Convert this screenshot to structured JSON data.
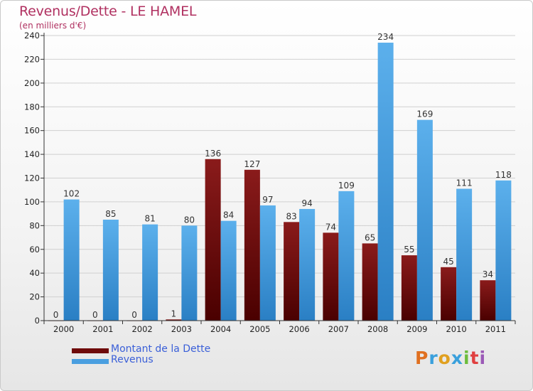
{
  "header": {
    "title": "Revenus/Dette - LE HAMEL",
    "subtitle": "(en milliers d'€)"
  },
  "legend": {
    "items": [
      {
        "label": "Montant de la Dette",
        "color": "#6e0a0a"
      },
      {
        "label": "Revenus",
        "color": "#4a9fe0"
      }
    ]
  },
  "logo": {
    "letters": [
      "P",
      "r",
      "o",
      "x",
      "i",
      "t",
      "i"
    ],
    "colors": [
      "#e07020",
      "#3aa0dc",
      "#e0a020",
      "#3aa0dc",
      "#6cbc3c",
      "#e04040",
      "#9b59b6"
    ]
  },
  "chart_data": {
    "type": "bar",
    "categories": [
      "2000",
      "2001",
      "2002",
      "2003",
      "2004",
      "2005",
      "2006",
      "2007",
      "2008",
      "2009",
      "2010",
      "2011"
    ],
    "series": [
      {
        "name": "Montant de la Dette",
        "values": [
          0,
          0,
          0,
          1,
          136,
          127,
          83,
          74,
          65,
          55,
          45,
          34
        ],
        "color": "#6e0a0a"
      },
      {
        "name": "Revenus",
        "values": [
          102,
          85,
          81,
          80,
          84,
          97,
          94,
          109,
          234,
          169,
          111,
          118
        ],
        "color": "#4a9fe0"
      }
    ],
    "ylim": [
      0,
      240
    ],
    "yticks": [
      0,
      20,
      40,
      60,
      80,
      100,
      120,
      140,
      160,
      180,
      200,
      220,
      240
    ],
    "grid": true,
    "legend_position": "bottom-left"
  }
}
